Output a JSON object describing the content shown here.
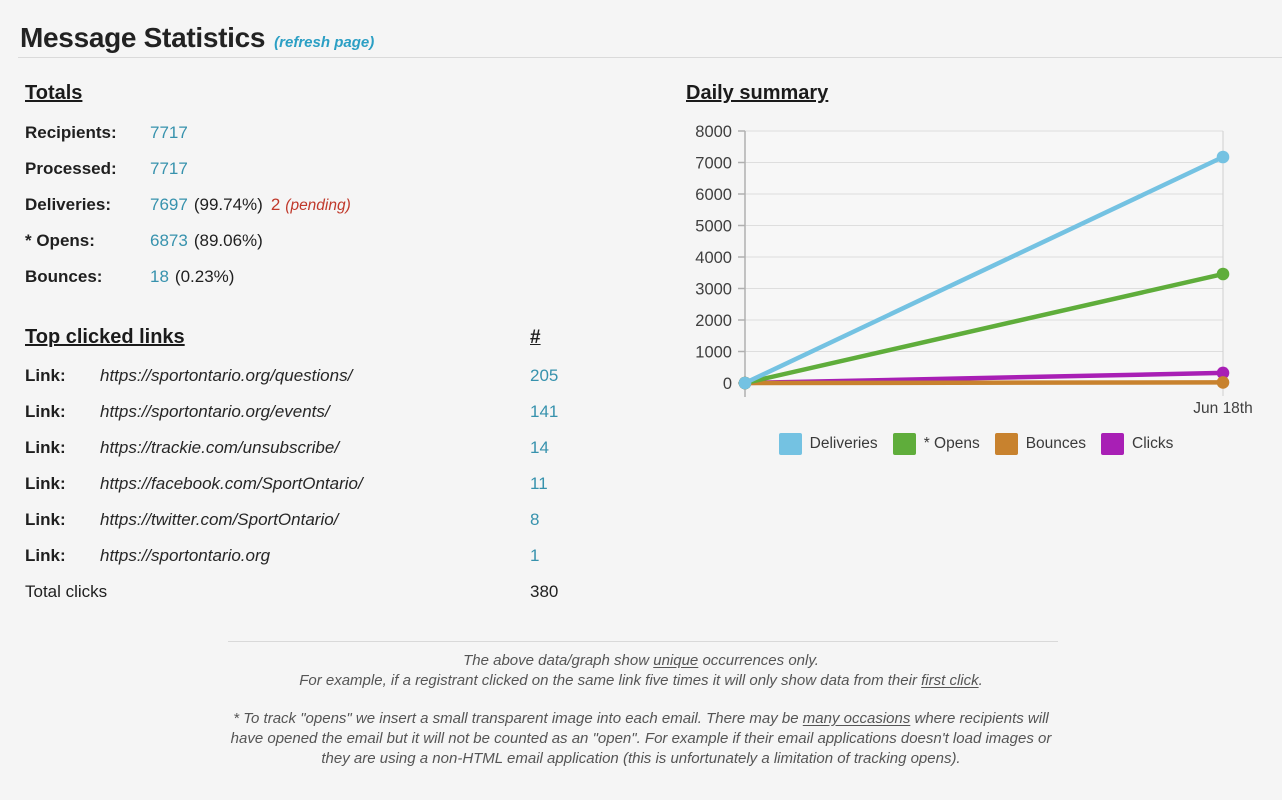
{
  "page": {
    "title": "Message Statistics",
    "refresh_link": "(refresh page)"
  },
  "totals": {
    "heading": "Totals",
    "rows": [
      {
        "label": "Recipients:",
        "value": "7717"
      },
      {
        "label": "Processed:",
        "value": "7717"
      },
      {
        "label": "Deliveries:",
        "value": "7697",
        "extra": "(99.74%)",
        "pending_value": "2",
        "pending_note": "(pending)"
      },
      {
        "label": "* Opens:",
        "value": "6873",
        "extra": "(89.06%)"
      },
      {
        "label": "Bounces:",
        "value": "18",
        "extra": "(0.23%)"
      }
    ]
  },
  "links": {
    "heading": "Top clicked links",
    "count_heading": "#",
    "rows": [
      {
        "label": "Link:",
        "url": "https://sportontario.org/questions/",
        "count": "205"
      },
      {
        "label": "Link:",
        "url": "https://sportontario.org/events/",
        "count": "141"
      },
      {
        "label": "Link:",
        "url": "https://trackie.com/unsubscribe/",
        "count": "14"
      },
      {
        "label": "Link:",
        "url": "https://facebook.com/SportOntario/",
        "count": "11"
      },
      {
        "label": "Link:",
        "url": "https://twitter.com/SportOntario/",
        "count": "8"
      },
      {
        "label": "Link:",
        "url": "https://sportontario.org",
        "count": "1"
      }
    ],
    "total_label": "Total clicks",
    "total_value": "380"
  },
  "chart_data": {
    "type": "line",
    "title": "Daily summary",
    "x_labels": [
      "",
      "Jun 18th"
    ],
    "y_ticks": [
      0,
      1000,
      2000,
      3000,
      4000,
      5000,
      6000,
      7000,
      8000
    ],
    "ylim": [
      0,
      8000
    ],
    "grid": true,
    "legend_position": "bottom",
    "series": [
      {
        "name": "Deliveries",
        "color": "#74c2e2",
        "values": [
          0,
          7175
        ]
      },
      {
        "name": "* Opens",
        "color": "#5fad3b",
        "values": [
          0,
          3460
        ]
      },
      {
        "name": "Bounces",
        "color": "#c8822e",
        "values": [
          0,
          18
        ]
      },
      {
        "name": "Clicks",
        "color": "#a81fb5",
        "values": [
          0,
          320
        ]
      }
    ]
  },
  "notes": {
    "line1_pre": "The above data/graph show ",
    "line1_u": "unique",
    "line1_post": " occurrences only.",
    "line2_pre": "For example, if a registrant clicked on the same link five times it will only show data from their ",
    "line2_u": "first click",
    "line2_post": ".",
    "para2_pre": "* To track \"opens\" we insert a small transparent image into each email. There may be ",
    "para2_u": "many occasions",
    "para2_post": " where recipients will have opened the email but it will not be counted as an \"open\". For example if their email applications doesn't load images or they are using a non-HTML email application (this is unfortunately a limitation of tracking opens)."
  },
  "colors": {
    "accent_teal": "#3792ad",
    "refresh_teal": "#2b9fc4",
    "pending_red": "#c0392b"
  }
}
